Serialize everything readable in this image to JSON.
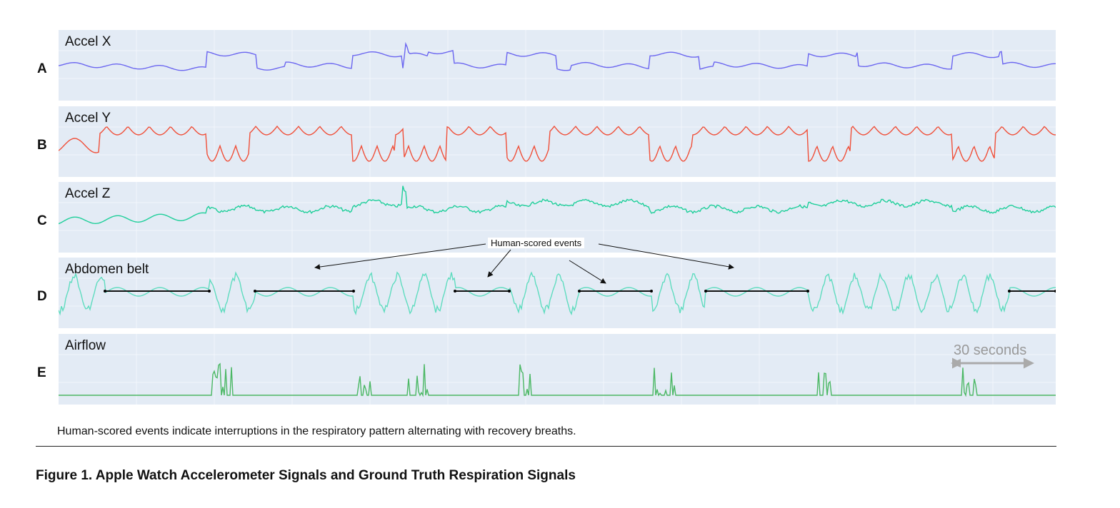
{
  "panels": [
    {
      "letter": "A",
      "label": "Accel X",
      "color": "#6b66f0"
    },
    {
      "letter": "B",
      "label": "Accel Y",
      "color": "#f0503a"
    },
    {
      "letter": "C",
      "label": "Accel Z",
      "color": "#1fcf9a"
    },
    {
      "letter": "D",
      "label": "Abdomen belt",
      "color": "#5fdcbf"
    },
    {
      "letter": "E",
      "label": "Airflow",
      "color": "#4cb865"
    }
  ],
  "annotation": "Human-scored events",
  "scale_bar": "30 seconds",
  "caption": "Human-scored events indicate interruptions in the respiratory pattern alternating with recovery breaths.",
  "figure_title": "Figure 1. Apple Watch Accelerometer Signals and Ground Truth Respiration Signals"
}
